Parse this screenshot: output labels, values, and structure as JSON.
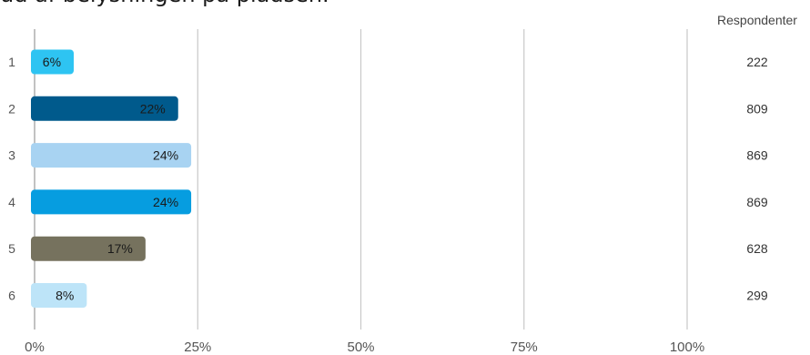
{
  "title_fragment": "ud af belysningen på pladsen.",
  "chart_data": {
    "type": "bar",
    "orientation": "horizontal",
    "categories": [
      "1",
      "2",
      "3",
      "4",
      "5",
      "6"
    ],
    "values": [
      6,
      22,
      24,
      24,
      17,
      8
    ],
    "value_labels": [
      "6%",
      "22%",
      "24%",
      "24%",
      "17%",
      "8%"
    ],
    "respondents": [
      222,
      809,
      869,
      869,
      628,
      299
    ],
    "respondents_header": "Respondenter",
    "xlim": [
      0,
      100
    ],
    "ticks": [
      0,
      25,
      50,
      75,
      100
    ],
    "tick_labels": [
      "0%",
      "25%",
      "50%",
      "75%",
      "100%"
    ],
    "grid": true,
    "colors": [
      "#2ec4f2",
      "#005a8c",
      "#a8d3f2",
      "#069de0",
      "#76725e",
      "#bde4f8"
    ],
    "label_colors": [
      "#1a1a1a",
      "#1a1a1a",
      "#1a1a1a",
      "#1a1a1a",
      "#1a1a1a",
      "#1a1a1a"
    ]
  }
}
